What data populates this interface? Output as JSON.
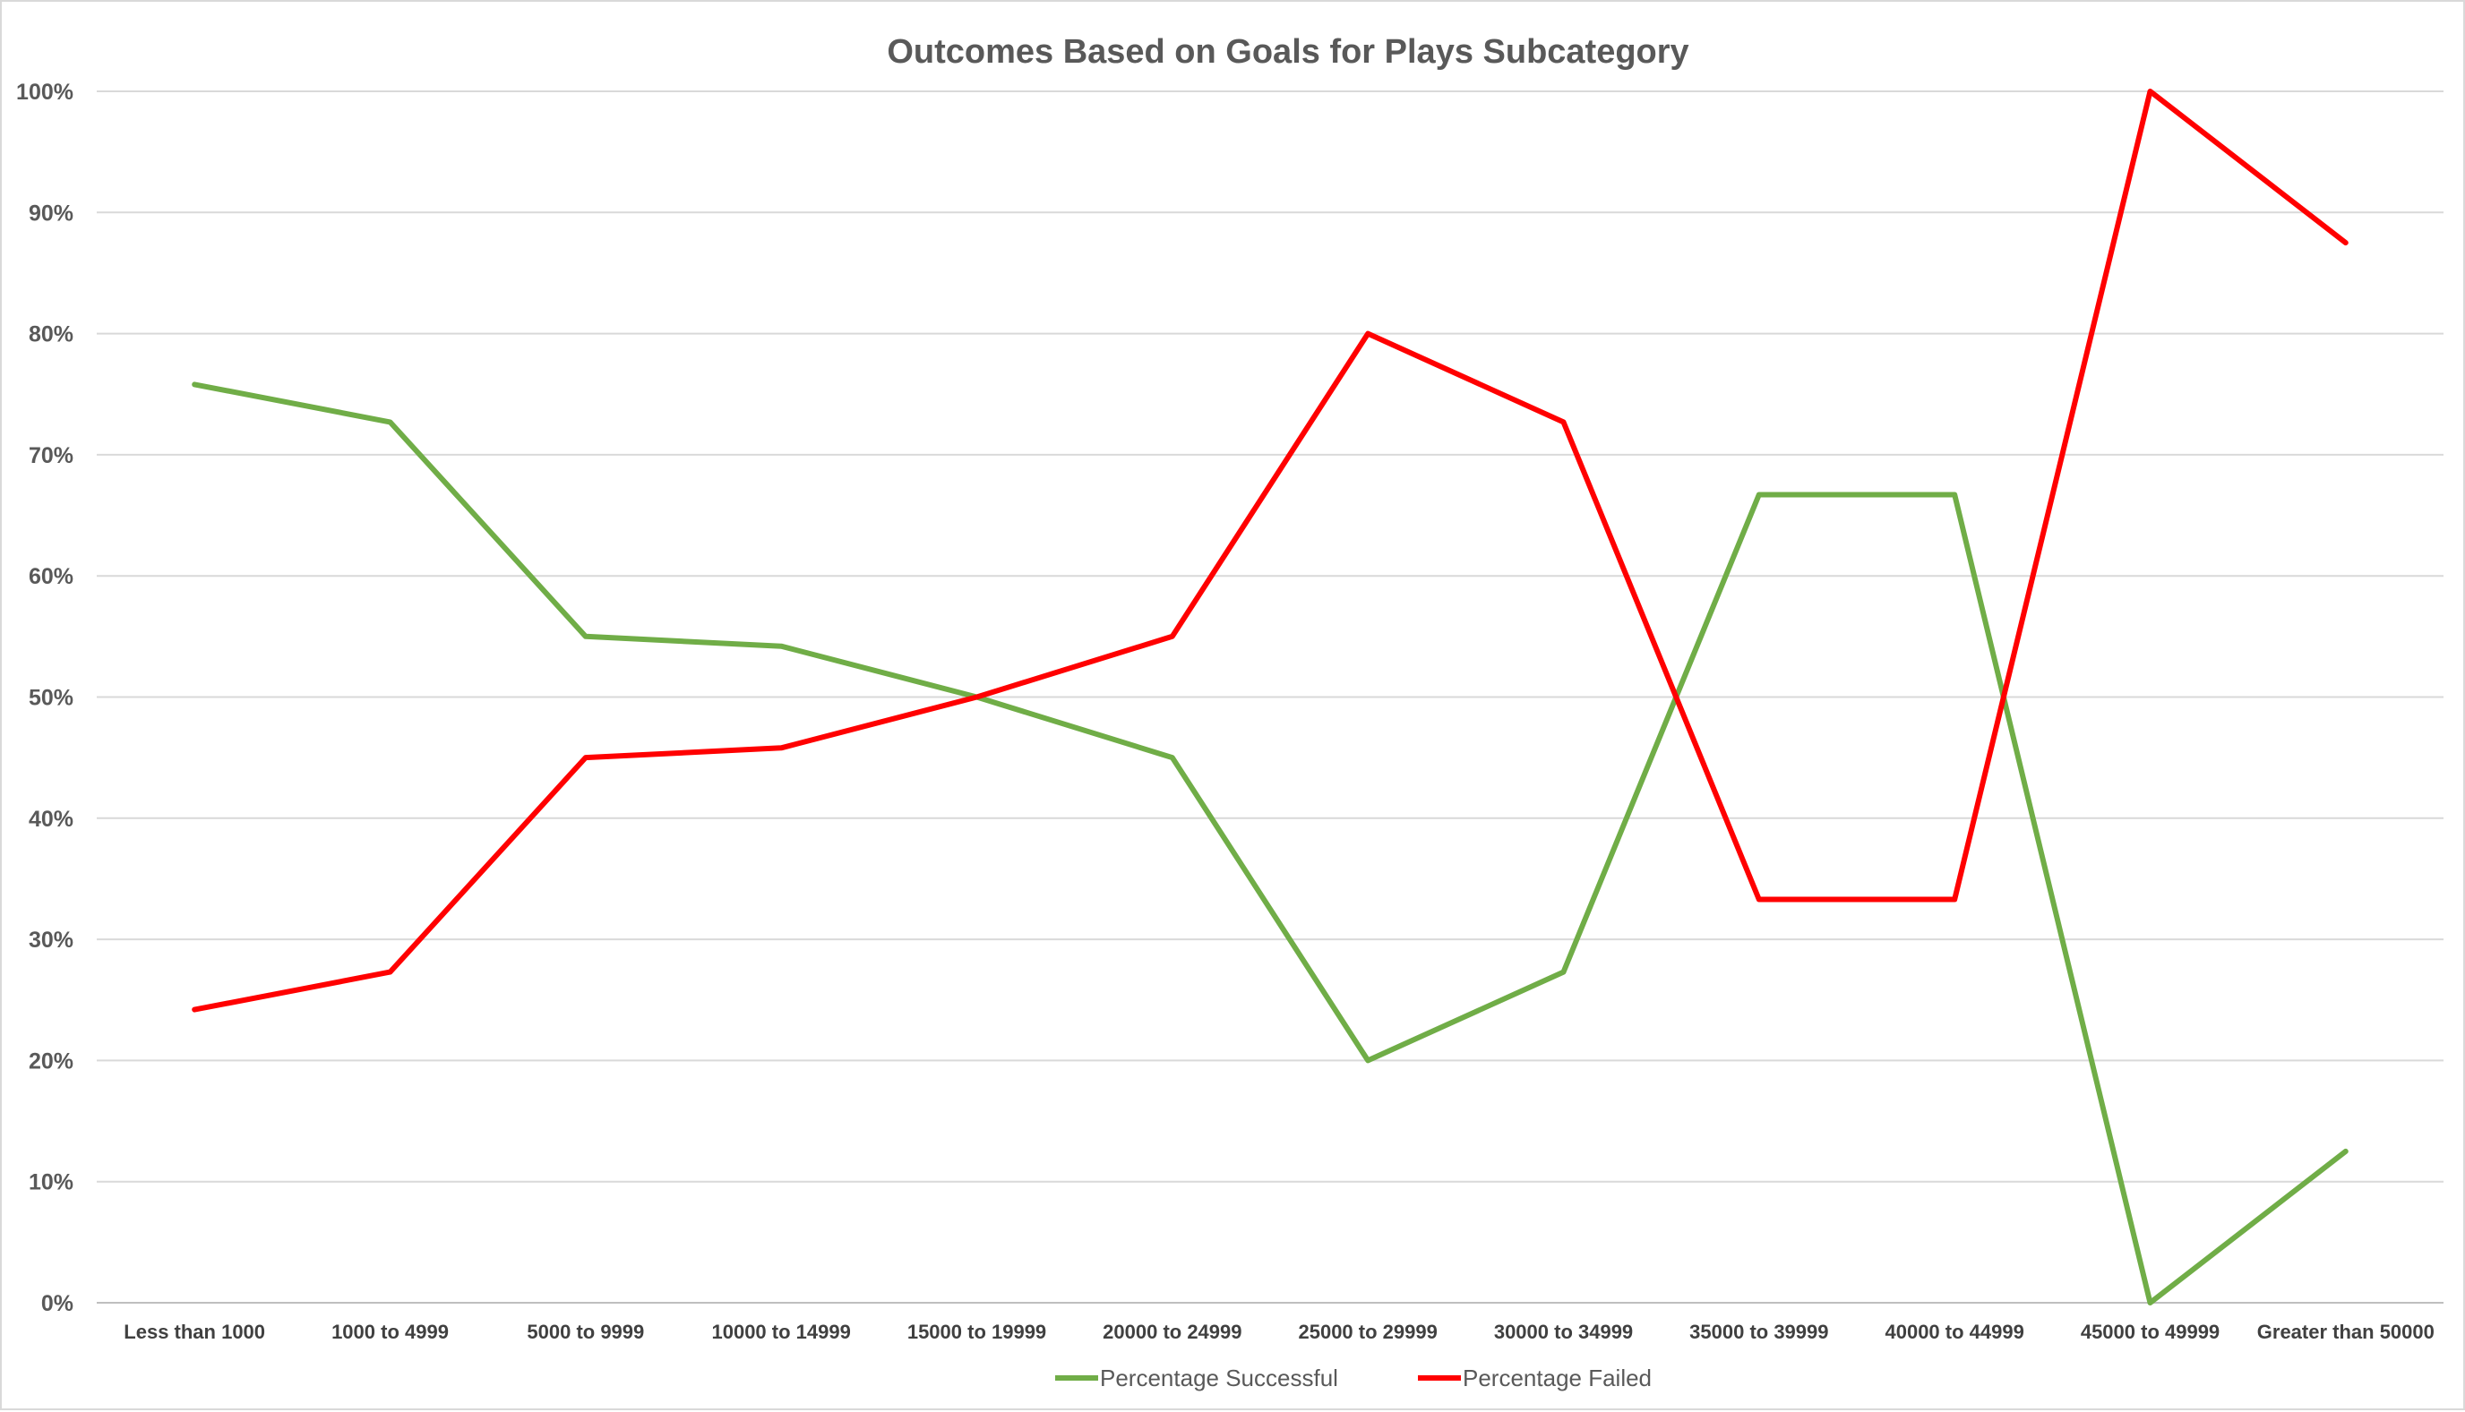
{
  "chart_data": {
    "type": "line",
    "title": "Outcomes Based on Goals for Plays Subcategory",
    "xlabel": "",
    "ylabel": "",
    "ylim": [
      0,
      1
    ],
    "y_ticks": [
      "0%",
      "10%",
      "20%",
      "30%",
      "40%",
      "50%",
      "60%",
      "70%",
      "80%",
      "90%",
      "100%"
    ],
    "grid": "horizontal",
    "legend_position": "bottom",
    "categories": [
      "Less than 1000",
      "1000 to 4999",
      "5000 to 9999",
      "10000 to 14999",
      "15000 to 19999",
      "20000 to 24999",
      "25000 to 29999",
      "30000 to 34999",
      "35000 to 39999",
      "40000 to 44999",
      "45000 to 49999",
      "Greater than 50000"
    ],
    "series": [
      {
        "name": "Percentage Successful",
        "color": "#70ad47",
        "values": [
          0.758,
          0.727,
          0.55,
          0.542,
          0.5,
          0.45,
          0.2,
          0.273,
          0.667,
          0.667,
          0.0,
          0.125
        ]
      },
      {
        "name": "Percentage Failed",
        "color": "#ff0000",
        "values": [
          0.242,
          0.273,
          0.45,
          0.458,
          0.5,
          0.55,
          0.8,
          0.727,
          0.333,
          0.333,
          1.0,
          0.875
        ]
      }
    ]
  }
}
